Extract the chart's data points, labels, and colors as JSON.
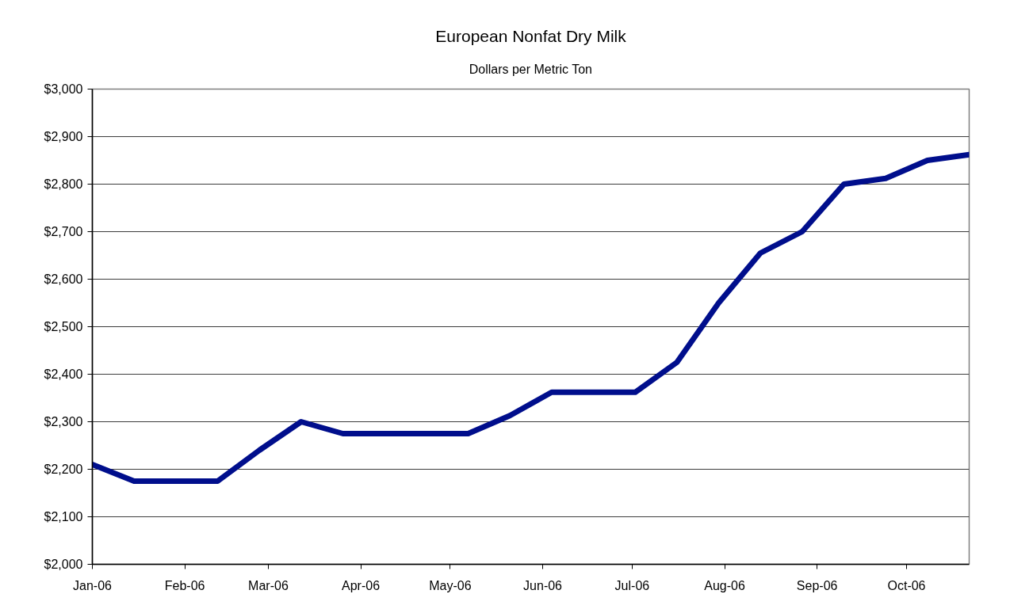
{
  "chart_data": {
    "type": "line",
    "title": "European Nonfat Dry Milk",
    "subtitle": "Dollars per Metric Ton",
    "x": [
      "2006-01-01",
      "2006-01-15",
      "2006-01-29",
      "2006-02-12",
      "2006-02-26",
      "2006-03-12",
      "2006-03-26",
      "2006-04-09",
      "2006-04-23",
      "2006-05-07",
      "2006-05-21",
      "2006-06-04",
      "2006-06-18",
      "2006-07-02",
      "2006-07-16",
      "2006-07-30",
      "2006-08-13",
      "2006-08-27",
      "2006-09-10",
      "2006-09-24",
      "2006-10-08",
      "2006-10-22"
    ],
    "series": [
      {
        "color": "#000e8c",
        "values": [
          2210,
          2175,
          2175,
          2175,
          2240,
          2300,
          2275,
          2275,
          2275,
          2275,
          2313,
          2362,
          2362,
          2362,
          2425,
          2550,
          2655,
          2700,
          2800,
          2812,
          2850,
          2862
        ]
      }
    ],
    "xlim": [
      "2006-01-01",
      "2006-10-22"
    ],
    "xticks": [
      {
        "value": "2006-01-01",
        "label": "Jan-06"
      },
      {
        "value": "2006-02-01",
        "label": "Feb-06"
      },
      {
        "value": "2006-03-01",
        "label": "Mar-06"
      },
      {
        "value": "2006-04-01",
        "label": "Apr-06"
      },
      {
        "value": "2006-05-01",
        "label": "May-06"
      },
      {
        "value": "2006-06-01",
        "label": "Jun-06"
      },
      {
        "value": "2006-07-01",
        "label": "Jul-06"
      },
      {
        "value": "2006-08-01",
        "label": "Aug-06"
      },
      {
        "value": "2006-09-01",
        "label": "Sep-06"
      },
      {
        "value": "2006-10-01",
        "label": "Oct-06"
      }
    ],
    "ylim": [
      2000,
      3000
    ],
    "yticks": [
      {
        "value": 2000,
        "label": "$2,000"
      },
      {
        "value": 2100,
        "label": "$2,100"
      },
      {
        "value": 2200,
        "label": "$2,200"
      },
      {
        "value": 2300,
        "label": "$2,300"
      },
      {
        "value": 2400,
        "label": "$2,400"
      },
      {
        "value": 2500,
        "label": "$2,500"
      },
      {
        "value": 2600,
        "label": "$2,600"
      },
      {
        "value": 2700,
        "label": "$2,700"
      },
      {
        "value": 2800,
        "label": "$2,800"
      },
      {
        "value": 2900,
        "label": "$2,900"
      },
      {
        "value": 3000,
        "label": "$3,000"
      }
    ],
    "grid": "y",
    "line_style": "solid"
  }
}
